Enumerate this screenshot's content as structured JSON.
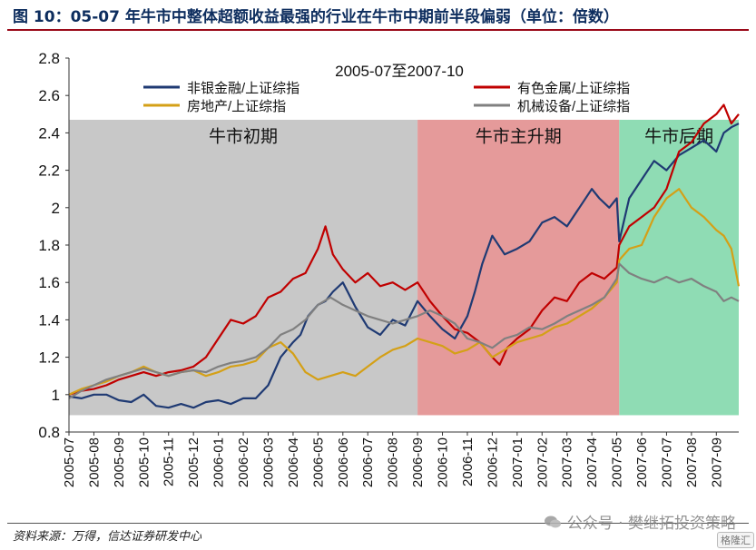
{
  "figure_title": "图 10：05-07 年牛市中整体超额收益最强的行业在牛市中期前半段偏弱（单位：倍数）",
  "source": "资料来源：万得，信达证券研发中心",
  "watermark": "公众号 · 樊继拓投资策略",
  "badge": "格隆汇",
  "chart_data": {
    "type": "line",
    "title": "2005-07至2007-10",
    "ylim": [
      0.8,
      2.8
    ],
    "yticks": [
      "0.8",
      "1",
      "1.2",
      "1.4",
      "1.6",
      "1.8",
      "2",
      "2.2",
      "2.4",
      "2.6",
      "2.8"
    ],
    "grid": false,
    "legend_position": "top",
    "x_tick_labels": [
      "2005-07",
      "2005-08",
      "2005-09",
      "2005-10",
      "2005-11",
      "2005-12",
      "2006-01",
      "2006-02",
      "2006-03",
      "2006-04",
      "2006-05",
      "2006-06",
      "2006-07",
      "2006-08",
      "2006-09",
      "2006-10",
      "2006-11",
      "2006-12",
      "2007-01",
      "2007-02",
      "2007-03",
      "2007-04",
      "2007-05",
      "2007-06",
      "2007-07",
      "2007-08",
      "2007-09"
    ],
    "x_months": [
      0,
      1,
      2,
      3,
      4,
      5,
      6,
      7,
      8,
      9,
      10,
      11,
      12,
      13,
      14,
      15,
      16,
      17,
      18,
      19,
      20,
      21,
      22,
      23,
      24,
      25,
      26
    ],
    "x_range": [
      0,
      26.9
    ],
    "phases": [
      {
        "label": "牛市初期",
        "start": 0,
        "end": 14.0,
        "color": "#c8c8c8"
      },
      {
        "label": "牛市主升期",
        "start": 14.0,
        "end": 22.1,
        "color": "#e59a9a"
      },
      {
        "label": "牛市后期",
        "start": 22.1,
        "end": 26.9,
        "color": "#8fdcb4"
      }
    ],
    "series": [
      {
        "name": "非银金融/上证综指",
        "color": "#1f3a73",
        "x": [
          0,
          0.5,
          1,
          1.5,
          2,
          2.5,
          3,
          3.5,
          4,
          4.5,
          5,
          5.5,
          6,
          6.5,
          7,
          7.5,
          8,
          8.5,
          9,
          9.3,
          9.6,
          10,
          10.3,
          10.6,
          11,
          11.5,
          12,
          12.5,
          13,
          13.5,
          14,
          14.5,
          15,
          15.5,
          16,
          16.3,
          16.6,
          17,
          17.5,
          18,
          18.5,
          19,
          19.5,
          20,
          20.5,
          21,
          21.3,
          21.7,
          22,
          22.1,
          22.5,
          23,
          23.5,
          24,
          24.5,
          25,
          25.5,
          26,
          26.3,
          26.6,
          26.9
        ],
        "values": [
          0.99,
          0.98,
          1.0,
          1.0,
          0.97,
          0.96,
          1.0,
          0.94,
          0.93,
          0.95,
          0.93,
          0.96,
          0.97,
          0.95,
          0.98,
          0.98,
          1.05,
          1.2,
          1.28,
          1.32,
          1.42,
          1.48,
          1.5,
          1.55,
          1.6,
          1.47,
          1.36,
          1.32,
          1.4,
          1.37,
          1.5,
          1.42,
          1.35,
          1.3,
          1.42,
          1.55,
          1.7,
          1.85,
          1.75,
          1.78,
          1.82,
          1.92,
          1.95,
          1.9,
          2.0,
          2.1,
          2.05,
          2.0,
          2.05,
          1.82,
          2.05,
          2.15,
          2.25,
          2.2,
          2.28,
          2.32,
          2.36,
          2.3,
          2.4,
          2.43,
          2.45
        ]
      },
      {
        "name": "有色金属/上证综指",
        "color": "#c00000",
        "x": [
          0,
          0.5,
          1,
          1.5,
          2,
          2.5,
          3,
          3.5,
          4,
          4.5,
          5,
          5.5,
          6,
          6.5,
          7,
          7.5,
          8,
          8.5,
          9,
          9.5,
          10,
          10.3,
          10.6,
          11,
          11.5,
          12,
          12.5,
          13,
          13.5,
          14,
          14.5,
          15,
          15.5,
          16,
          16.5,
          17,
          17.3,
          17.6,
          18,
          18.5,
          19,
          19.5,
          20,
          20.5,
          21,
          21.5,
          22,
          22.1,
          22.5,
          23,
          23.5,
          24,
          24.5,
          25,
          25.5,
          26,
          26.3,
          26.6,
          26.9
        ],
        "values": [
          1.0,
          1.02,
          1.03,
          1.05,
          1.08,
          1.1,
          1.12,
          1.1,
          1.12,
          1.13,
          1.15,
          1.2,
          1.3,
          1.4,
          1.38,
          1.42,
          1.52,
          1.55,
          1.62,
          1.65,
          1.78,
          1.9,
          1.75,
          1.67,
          1.6,
          1.65,
          1.58,
          1.6,
          1.56,
          1.6,
          1.5,
          1.42,
          1.35,
          1.33,
          1.28,
          1.2,
          1.16,
          1.25,
          1.3,
          1.35,
          1.45,
          1.52,
          1.5,
          1.6,
          1.65,
          1.62,
          1.68,
          1.8,
          1.9,
          1.95,
          2.0,
          2.1,
          2.3,
          2.35,
          2.45,
          2.5,
          2.55,
          2.45,
          2.5
        ]
      },
      {
        "name": "房地产/上证综指",
        "color": "#d4a017",
        "x": [
          0,
          0.5,
          1,
          1.5,
          2,
          2.5,
          3,
          3.5,
          4,
          4.5,
          5,
          5.5,
          6,
          6.5,
          7,
          7.5,
          8,
          8.5,
          9,
          9.5,
          10,
          10.5,
          11,
          11.5,
          12,
          12.5,
          13,
          13.5,
          14,
          14.5,
          15,
          15.5,
          16,
          16.5,
          17,
          17.5,
          18,
          18.5,
          19,
          19.5,
          20,
          20.5,
          21,
          21.5,
          22,
          22.1,
          22.5,
          23,
          23.5,
          24,
          24.5,
          25,
          25.5,
          26,
          26.3,
          26.6,
          26.9
        ],
        "values": [
          1.0,
          1.03,
          1.05,
          1.07,
          1.1,
          1.12,
          1.15,
          1.12,
          1.1,
          1.12,
          1.13,
          1.1,
          1.12,
          1.15,
          1.16,
          1.18,
          1.25,
          1.28,
          1.22,
          1.12,
          1.08,
          1.1,
          1.12,
          1.1,
          1.15,
          1.2,
          1.24,
          1.26,
          1.3,
          1.28,
          1.26,
          1.22,
          1.24,
          1.28,
          1.2,
          1.24,
          1.28,
          1.3,
          1.32,
          1.36,
          1.38,
          1.42,
          1.46,
          1.52,
          1.6,
          1.72,
          1.78,
          1.8,
          1.95,
          2.05,
          2.1,
          2.0,
          1.95,
          1.88,
          1.85,
          1.78,
          1.58
        ]
      },
      {
        "name": "机械设备/上证综指",
        "color": "#808080",
        "x": [
          0,
          0.5,
          1,
          1.5,
          2,
          2.5,
          3,
          3.5,
          4,
          4.5,
          5,
          5.5,
          6,
          6.5,
          7,
          7.5,
          8,
          8.5,
          9,
          9.5,
          10,
          10.5,
          11,
          11.5,
          12,
          12.5,
          13,
          13.5,
          14,
          14.5,
          15,
          15.5,
          16,
          16.5,
          17,
          17.5,
          18,
          18.5,
          19,
          19.5,
          20,
          20.5,
          21,
          21.5,
          22,
          22.1,
          22.5,
          23,
          23.5,
          24,
          24.5,
          25,
          25.5,
          26,
          26.3,
          26.6,
          26.9
        ],
        "values": [
          0.98,
          1.02,
          1.05,
          1.08,
          1.1,
          1.12,
          1.14,
          1.12,
          1.1,
          1.12,
          1.13,
          1.12,
          1.15,
          1.17,
          1.18,
          1.2,
          1.25,
          1.32,
          1.35,
          1.4,
          1.48,
          1.52,
          1.48,
          1.45,
          1.42,
          1.4,
          1.38,
          1.4,
          1.42,
          1.45,
          1.42,
          1.38,
          1.3,
          1.28,
          1.25,
          1.3,
          1.32,
          1.36,
          1.35,
          1.38,
          1.42,
          1.45,
          1.48,
          1.52,
          1.62,
          1.7,
          1.65,
          1.62,
          1.6,
          1.63,
          1.6,
          1.62,
          1.58,
          1.55,
          1.5,
          1.52,
          1.5
        ]
      }
    ]
  }
}
